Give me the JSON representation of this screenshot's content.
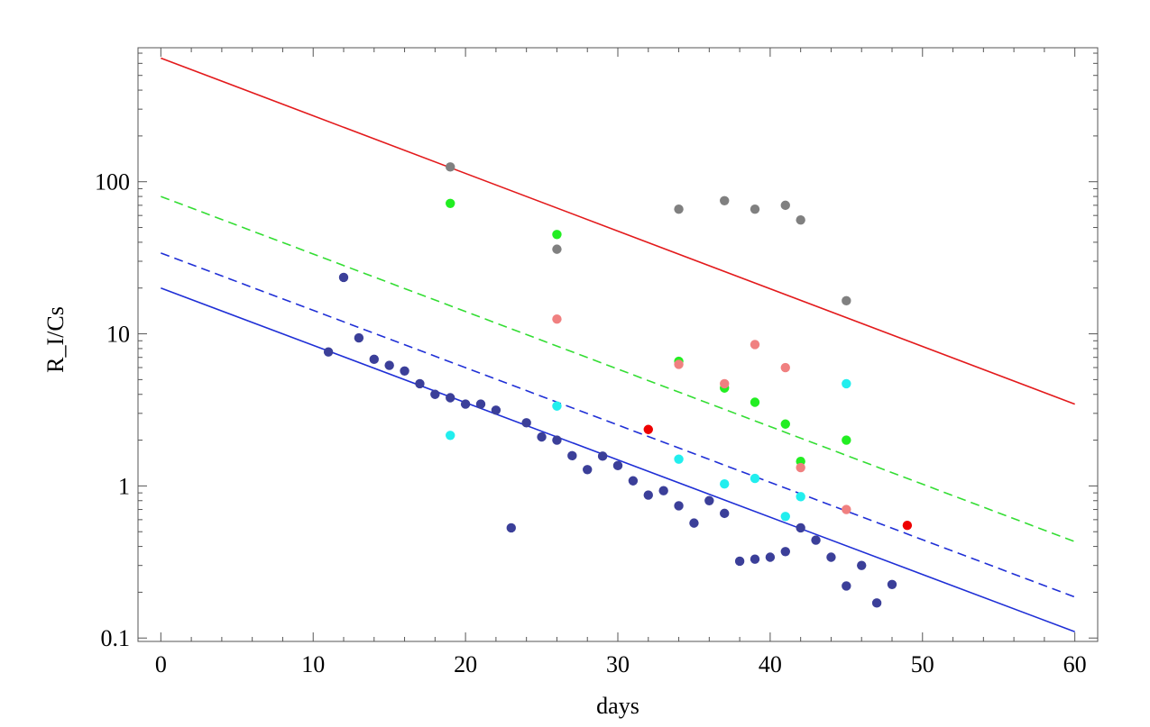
{
  "chart_data": {
    "type": "scatter",
    "title": "",
    "xlabel": "days",
    "ylabel": "R_I/Cs",
    "y_scale": "log",
    "xlim": [
      -1.5,
      61.5
    ],
    "ylim": [
      0.095,
      760
    ],
    "grid": false,
    "legend": "none",
    "x_ticks": [
      {
        "value": 0,
        "label": "0"
      },
      {
        "value": 10,
        "label": "10"
      },
      {
        "value": 20,
        "label": "20"
      },
      {
        "value": 30,
        "label": "30"
      },
      {
        "value": 40,
        "label": "40"
      },
      {
        "value": 50,
        "label": "50"
      },
      {
        "value": 60,
        "label": "60"
      }
    ],
    "y_ticks": [
      {
        "value": 0.1,
        "label": "0.1"
      },
      {
        "value": 1,
        "label": "1"
      },
      {
        "value": 10,
        "label": "10"
      },
      {
        "value": 100,
        "label": "100"
      }
    ],
    "lines": [
      {
        "color": "#e31a1c",
        "dash": "solid",
        "x": [
          0,
          60
        ],
        "y": [
          650,
          3.45
        ]
      },
      {
        "color": "#33dd33",
        "dash": "dashed",
        "x": [
          0,
          60
        ],
        "y": [
          80,
          0.43
        ]
      },
      {
        "color": "#1f2fd6",
        "dash": "dashed",
        "x": [
          0,
          60
        ],
        "y": [
          34,
          0.186
        ]
      },
      {
        "color": "#1f2fd6",
        "dash": "solid",
        "x": [
          0,
          60
        ],
        "y": [
          20,
          0.11
        ]
      }
    ],
    "series": [
      {
        "color": "#3b3f99",
        "points": [
          [
            11,
            7.6
          ],
          [
            12,
            23.5
          ],
          [
            13,
            9.4
          ],
          [
            14,
            6.8
          ],
          [
            15,
            6.2
          ],
          [
            16,
            5.7
          ],
          [
            17,
            4.7
          ],
          [
            18,
            4.0
          ],
          [
            19,
            3.8
          ],
          [
            20,
            3.45
          ],
          [
            21,
            3.45
          ],
          [
            22,
            3.15
          ],
          [
            23,
            0.53
          ],
          [
            24,
            2.6
          ],
          [
            25,
            2.1
          ],
          [
            26,
            2.0
          ],
          [
            27,
            1.58
          ],
          [
            28,
            1.28
          ],
          [
            29,
            1.57
          ],
          [
            30,
            1.36
          ],
          [
            31,
            1.08
          ],
          [
            32,
            0.87
          ],
          [
            33,
            0.93
          ],
          [
            34,
            0.74
          ],
          [
            35,
            0.57
          ],
          [
            36,
            0.8
          ],
          [
            37,
            0.66
          ],
          [
            38,
            0.32
          ],
          [
            39,
            0.33
          ],
          [
            40,
            0.34
          ],
          [
            41,
            0.37
          ],
          [
            42,
            0.53
          ],
          [
            43,
            0.44
          ],
          [
            44,
            0.34
          ],
          [
            45,
            0.22
          ],
          [
            46,
            0.3
          ],
          [
            47,
            0.17
          ],
          [
            48,
            0.225
          ]
        ]
      },
      {
        "color": "#808080",
        "points": [
          [
            19,
            125
          ],
          [
            26,
            36
          ],
          [
            34,
            66
          ],
          [
            37,
            75
          ],
          [
            39,
            66
          ],
          [
            41,
            70
          ],
          [
            42,
            56
          ],
          [
            45,
            16.5
          ]
        ]
      },
      {
        "color": "#22ee22",
        "points": [
          [
            19,
            72
          ],
          [
            26,
            45
          ],
          [
            34,
            6.6
          ],
          [
            37,
            4.4
          ],
          [
            39,
            3.55
          ],
          [
            41,
            2.55
          ],
          [
            42,
            1.45
          ],
          [
            45,
            2.0
          ]
        ]
      },
      {
        "color": "#f08080",
        "points": [
          [
            26,
            12.5
          ],
          [
            34,
            6.3
          ],
          [
            37,
            4.7
          ],
          [
            39,
            8.5
          ],
          [
            41,
            6.0
          ],
          [
            42,
            1.32
          ],
          [
            45,
            0.7
          ]
        ]
      },
      {
        "color": "#22eeee",
        "points": [
          [
            19,
            2.15
          ],
          [
            26,
            3.35
          ],
          [
            34,
            1.5
          ],
          [
            37,
            1.03
          ],
          [
            39,
            1.12
          ],
          [
            41,
            0.63
          ],
          [
            42,
            0.85
          ],
          [
            45,
            4.7
          ]
        ]
      },
      {
        "color": "#ee0000",
        "points": [
          [
            32,
            2.35
          ],
          [
            49,
            0.55
          ]
        ]
      }
    ]
  }
}
